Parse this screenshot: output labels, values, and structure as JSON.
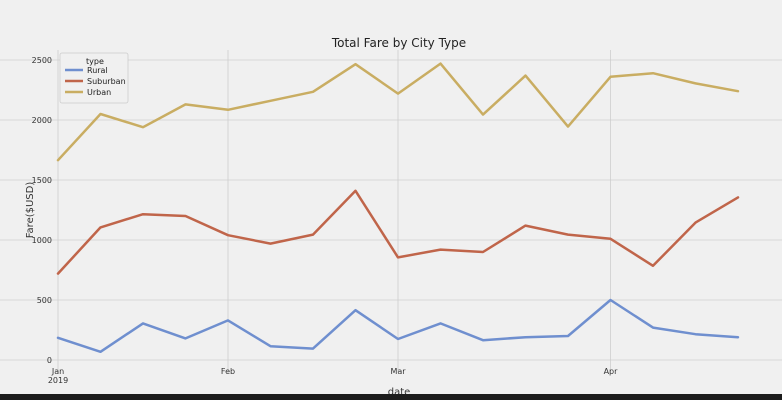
{
  "chart_data": {
    "type": "line",
    "title": "Total Fare by City Type",
    "xlabel": "date",
    "ylabel": "Fare($USD)",
    "ylim": [
      -50,
      2600
    ],
    "yticks": [
      0,
      500,
      1000,
      1500,
      2000,
      2500
    ],
    "xlim": [
      0,
      16
    ],
    "x_ticks": [
      {
        "pos": 0,
        "label": "Jan",
        "sublabel": "2019"
      },
      {
        "pos": 4,
        "label": "Feb",
        "sublabel": ""
      },
      {
        "pos": 8,
        "label": "Mar",
        "sublabel": ""
      },
      {
        "pos": 13,
        "label": "Apr",
        "sublabel": ""
      }
    ],
    "x": [
      0,
      1,
      2,
      3,
      4,
      5,
      6,
      7,
      8,
      9,
      10,
      11,
      12,
      13,
      14,
      15,
      16
    ],
    "grid": true,
    "legend": {
      "title": "type",
      "position": "top-left"
    },
    "series": [
      {
        "name": "Rural",
        "color": "#6f8fcf",
        "values": [
          185,
          68,
          305,
          180,
          330,
          115,
          95,
          415,
          175,
          305,
          165,
          190,
          200,
          500,
          270,
          215,
          190
        ]
      },
      {
        "name": "Suburban",
        "color": "#c0654a",
        "values": [
          720,
          1105,
          1215,
          1200,
          1040,
          970,
          1045,
          1410,
          855,
          920,
          900,
          1120,
          1045,
          1010,
          785,
          1145,
          1355
        ]
      },
      {
        "name": "Urban",
        "color": "#c9ad62",
        "values": [
          1665,
          2050,
          1940,
          2130,
          2085,
          2160,
          2235,
          2465,
          2220,
          2470,
          2045,
          2370,
          1945,
          2360,
          2390,
          2305,
          2240
        ]
      }
    ],
    "colors": {
      "background": "#f0f0f0",
      "grid": "#cfcfcf"
    }
  }
}
